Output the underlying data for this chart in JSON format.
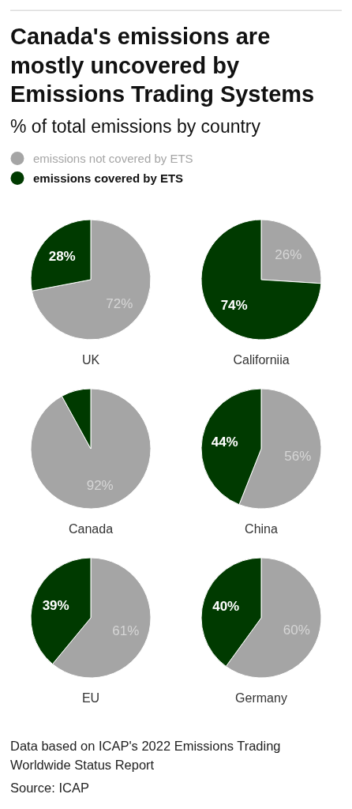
{
  "chart_data": [
    {
      "type": "pie",
      "title": "Canada's emissions are mostly uncovered by Emissions Trading Systems",
      "subtitle": "% of total emissions by country",
      "xlabel": "UK",
      "categories": [
        "emissions not covered by ETS",
        "emissions covered by ETS"
      ],
      "values": [
        72,
        28
      ],
      "colors": [
        "#a5a5a5",
        "#003a00"
      ],
      "value_labels": [
        "72%",
        "28%"
      ],
      "legend": "top"
    },
    {
      "type": "pie",
      "xlabel": "Californiia",
      "values": [
        26,
        74
      ],
      "colors": [
        "#a5a5a5",
        "#003a00"
      ],
      "value_labels": [
        "26%",
        "74%"
      ]
    },
    {
      "type": "pie",
      "xlabel": "Canada",
      "values": [
        92,
        8
      ],
      "colors": [
        "#a5a5a5",
        "#003a00"
      ],
      "value_labels": [
        "92%",
        null
      ]
    },
    {
      "type": "pie",
      "xlabel": "China",
      "values": [
        56,
        44
      ],
      "colors": [
        "#a5a5a5",
        "#003a00"
      ],
      "value_labels": [
        "56%",
        "44%"
      ]
    },
    {
      "type": "pie",
      "xlabel": "EU",
      "values": [
        61,
        39
      ],
      "colors": [
        "#a5a5a5",
        "#003a00"
      ],
      "value_labels": [
        "61%",
        "39%"
      ]
    },
    {
      "type": "pie",
      "xlabel": "Germany",
      "values": [
        60,
        40
      ],
      "colors": [
        "#a5a5a5",
        "#003a00"
      ],
      "value_labels": [
        "60%",
        "40%"
      ],
      "annotations": [
        "Data based on ICAP's 2022 Emissions Trading Worldwide Status Report",
        "Source: ICAP"
      ]
    }
  ]
}
